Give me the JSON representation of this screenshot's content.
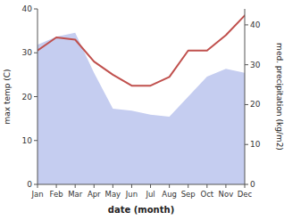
{
  "chart_data": {
    "type": "line",
    "categories": [
      "Jan",
      "Feb",
      "Mar",
      "Apr",
      "May",
      "Jun",
      "Jul",
      "Aug",
      "Sep",
      "Oct",
      "Nov",
      "Dec"
    ],
    "series": [
      {
        "type": "area",
        "axis": "y2",
        "color": "#c5cdf0",
        "values": [
          35.0,
          37.0,
          38.0,
          28.0,
          19.0,
          18.5,
          17.5,
          17.0,
          22.0,
          27.0,
          29.0,
          28.0
        ]
      },
      {
        "type": "line",
        "color": "#c0504d",
        "values": [
          30.5,
          33.5,
          33.0,
          28.0,
          25.0,
          22.5,
          22.5,
          24.5,
          30.5,
          30.5,
          34.0,
          38.5
        ]
      }
    ],
    "xlabel": "date (month)",
    "ylabel": "max temp (C)",
    "y2label": "med. precipitation (kg/m2)",
    "ylim": [
      0,
      40
    ],
    "yticks": [
      0,
      10,
      20,
      30,
      40
    ],
    "y2lim": [
      0,
      44
    ],
    "y2ticks": [
      0,
      10,
      20,
      30,
      40
    ],
    "grid": false
  }
}
